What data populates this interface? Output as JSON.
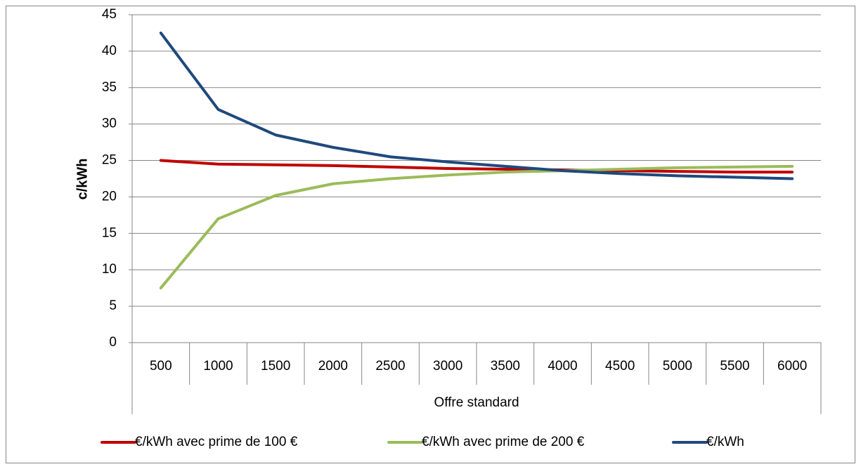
{
  "chart_data": {
    "type": "line",
    "ylabel": "c/kWh",
    "xlabel": "Offre standard",
    "categories": [
      "500",
      "1000",
      "1500",
      "2000",
      "2500",
      "3000",
      "3500",
      "4000",
      "4500",
      "5000",
      "5500",
      "6000"
    ],
    "series": [
      {
        "name": "€/kWh avec prime de 100 €",
        "color": "#c00000",
        "values": [
          25,
          24.5,
          24.4,
          24.3,
          24.1,
          23.9,
          23.8,
          23.7,
          23.6,
          23.5,
          23.4,
          23.4
        ]
      },
      {
        "name": "€/kWh avec prime de 200 €",
        "color": "#9bbb59",
        "values": [
          7.5,
          17,
          20.2,
          21.8,
          22.5,
          23,
          23.4,
          23.6,
          23.8,
          24,
          24.1,
          24.2
        ]
      },
      {
        "name": "€/kWh",
        "color": "#1f497d",
        "values": [
          42.5,
          32,
          28.5,
          26.8,
          25.5,
          24.8,
          24.2,
          23.6,
          23.2,
          22.9,
          22.7,
          22.5
        ]
      }
    ],
    "ylim": [
      0,
      45
    ],
    "yticks": [
      0,
      5,
      10,
      15,
      20,
      25,
      30,
      35,
      40,
      45
    ],
    "grid": true,
    "legend": "bottom"
  }
}
